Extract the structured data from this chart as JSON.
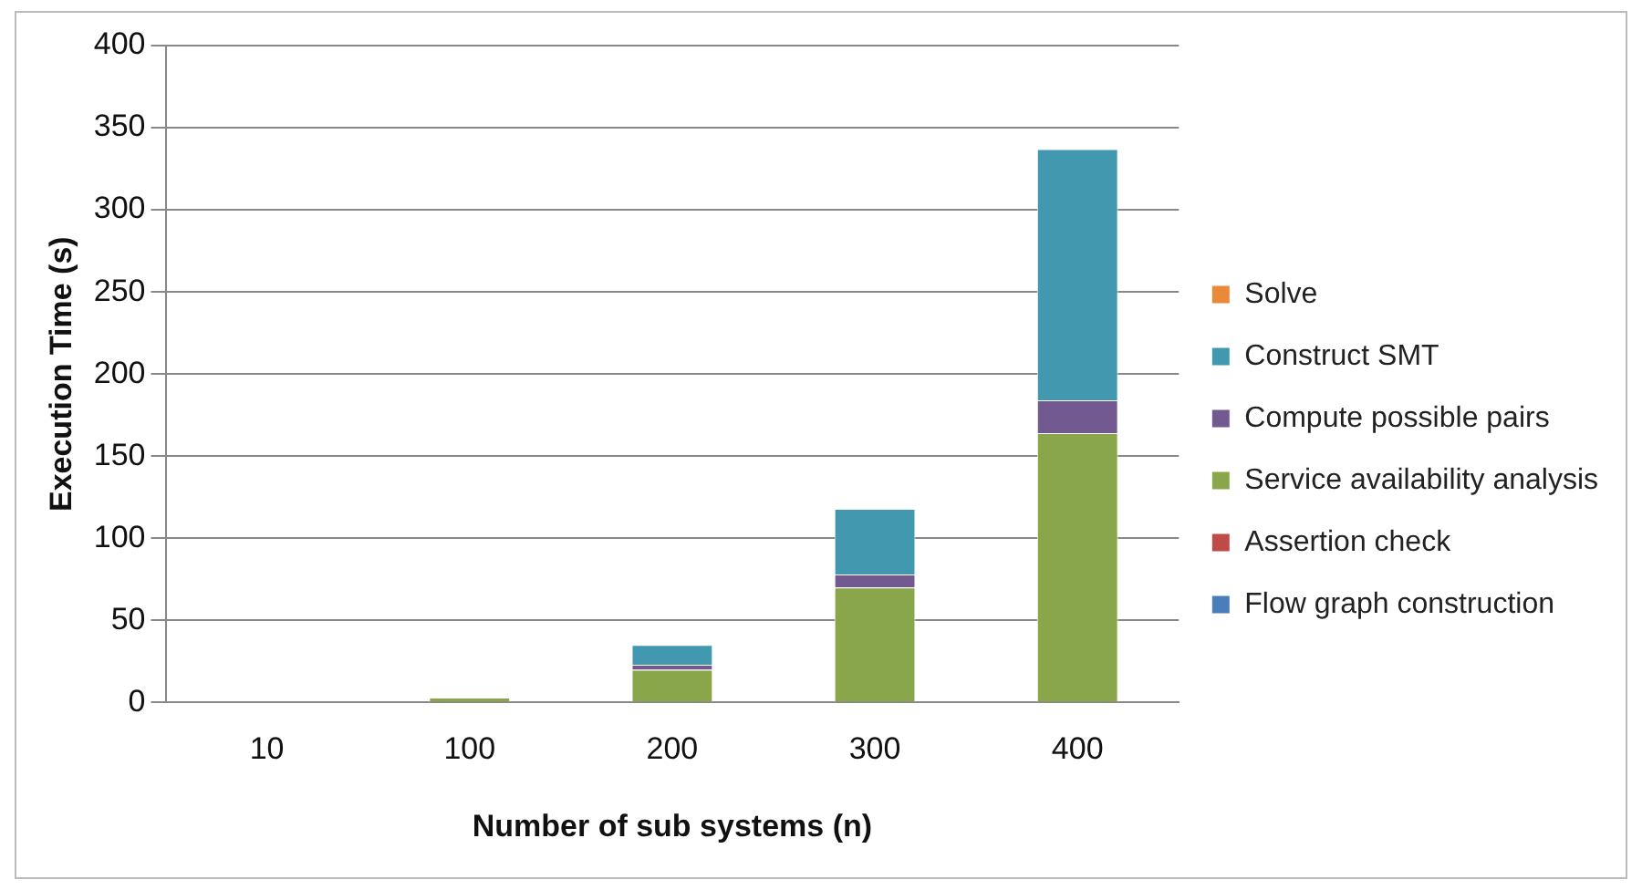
{
  "chart_data": {
    "type": "bar",
    "stacked": true,
    "xlabel": "Number of sub systems (n)",
    "ylabel": "Execution Time (s)",
    "categories": [
      "10",
      "100",
      "200",
      "300",
      "400"
    ],
    "series": [
      {
        "name": "Flow graph construction",
        "color": "#4a7ebb",
        "values": [
          0,
          0,
          0,
          0,
          0
        ]
      },
      {
        "name": "Assertion check",
        "color": "#be4b48",
        "values": [
          0,
          0,
          0,
          0,
          0
        ]
      },
      {
        "name": "Service availability analysis",
        "color": "#8aa64a",
        "values": [
          0,
          3,
          20,
          70,
          164
        ]
      },
      {
        "name": "Compute possible pairs",
        "color": "#725a91",
        "values": [
          0,
          0,
          3,
          8,
          20
        ]
      },
      {
        "name": "Construct SMT",
        "color": "#4198af",
        "values": [
          0,
          0,
          12,
          40,
          153
        ]
      },
      {
        "name": "Solve",
        "color": "#e88a3a",
        "values": [
          0,
          0,
          0,
          0,
          0
        ]
      }
    ],
    "ylim": [
      0,
      400
    ],
    "yticks": [
      0,
      50,
      100,
      150,
      200,
      250,
      300,
      350,
      400
    ],
    "grid": "y",
    "legend": "right"
  }
}
